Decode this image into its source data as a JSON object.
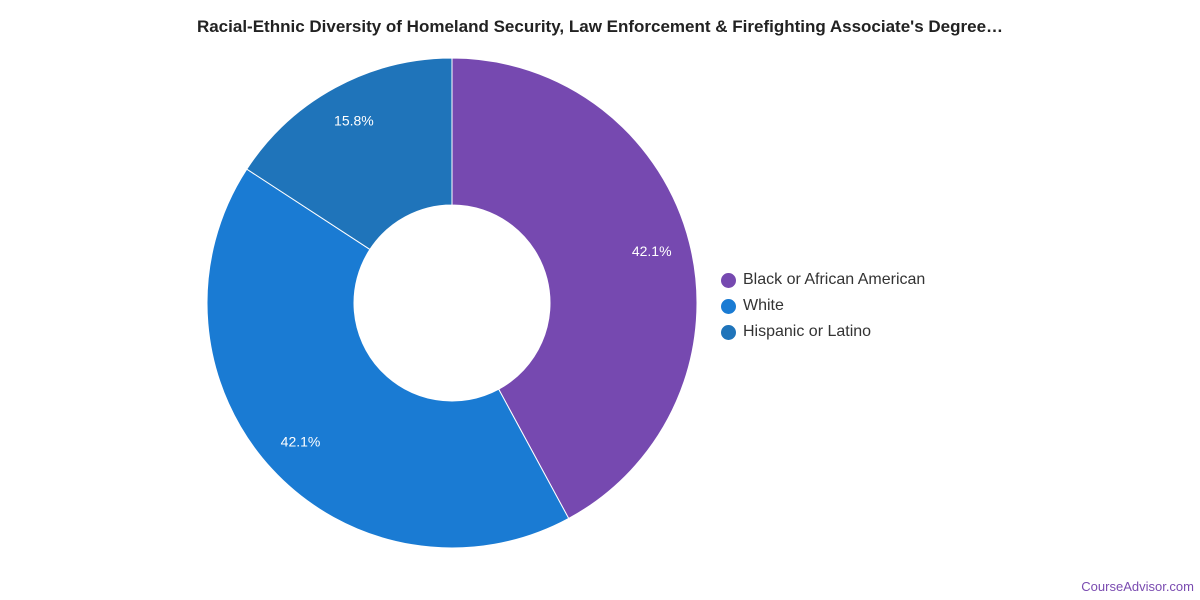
{
  "title": "Racial-Ethnic Diversity of Homeland Security, Law Enforcement & Firefighting Associate's Degree…",
  "source": "CourseAdvisor.com",
  "chart_data": {
    "type": "pie",
    "donut": true,
    "title": "Racial-Ethnic Diversity of Homeland Security, Law Enforcement & Firefighting Associate's Degree…",
    "legend_position": "right",
    "slices": [
      {
        "name": "Black or African American",
        "value": 42.1,
        "label": "42.1%",
        "color": "#7649b0"
      },
      {
        "name": "White",
        "value": 42.1,
        "label": "42.1%",
        "color": "#1a7bd3"
      },
      {
        "name": "Hispanic or Latino",
        "value": 15.8,
        "label": "15.8%",
        "color": "#1f74ba"
      }
    ]
  }
}
